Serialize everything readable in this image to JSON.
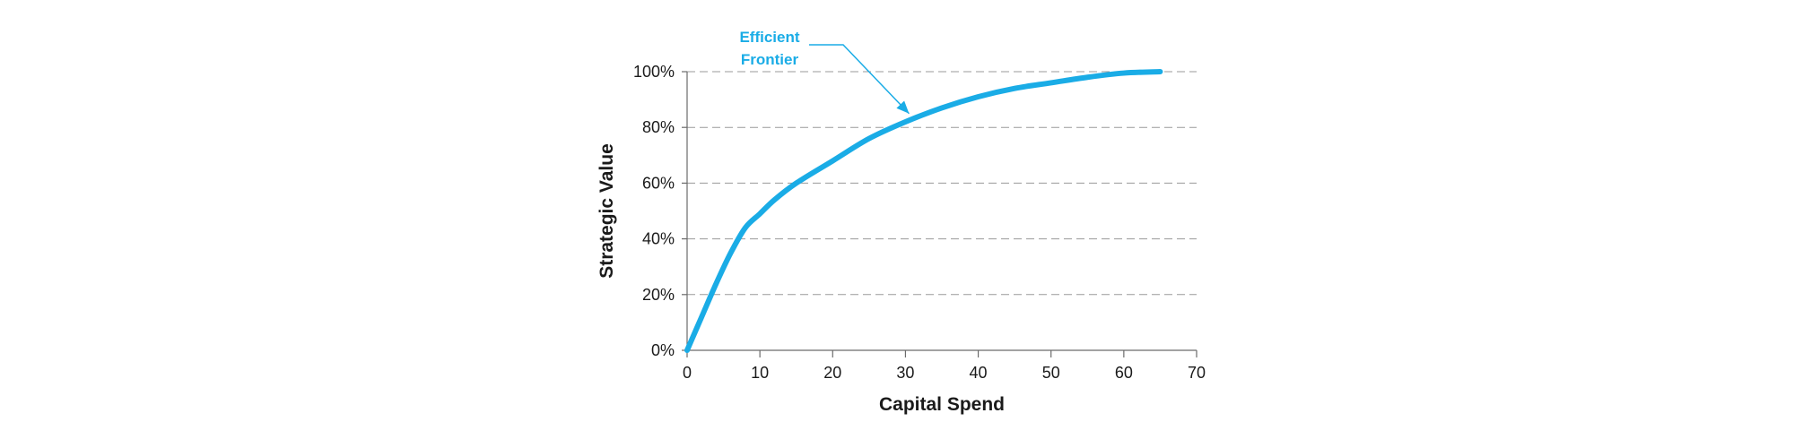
{
  "chart_data": {
    "type": "line",
    "title": "",
    "xlabel": "Capital Spend",
    "ylabel": "Strategic Value",
    "xlim": [
      0,
      70
    ],
    "ylim": [
      0,
      100
    ],
    "x_ticks": [
      0,
      10,
      20,
      30,
      40,
      50,
      60,
      70
    ],
    "y_ticks": [
      0,
      20,
      40,
      60,
      80,
      100
    ],
    "x_tick_labels": [
      "0",
      "10",
      "20",
      "30",
      "40",
      "50",
      "60",
      "70"
    ],
    "y_tick_labels": [
      "0%",
      "20%",
      "40%",
      "60%",
      "80%",
      "100%"
    ],
    "grid": "horizontal dashed",
    "legend": "none",
    "series": [
      {
        "color": "#1aace6",
        "x": [
          0,
          2,
          4,
          6,
          8,
          10,
          12,
          15,
          20,
          25,
          30,
          35,
          40,
          45,
          50,
          55,
          60,
          65
        ],
        "y": [
          0,
          12,
          24,
          35,
          44,
          49,
          54,
          60,
          68,
          76,
          82,
          87,
          91,
          94,
          96,
          98,
          99.5,
          100
        ]
      }
    ],
    "annotations": [
      {
        "line1": "Efficient",
        "line2": "Frontier",
        "color": "#1aace6",
        "target_x": 30,
        "target_y": 84
      }
    ]
  }
}
